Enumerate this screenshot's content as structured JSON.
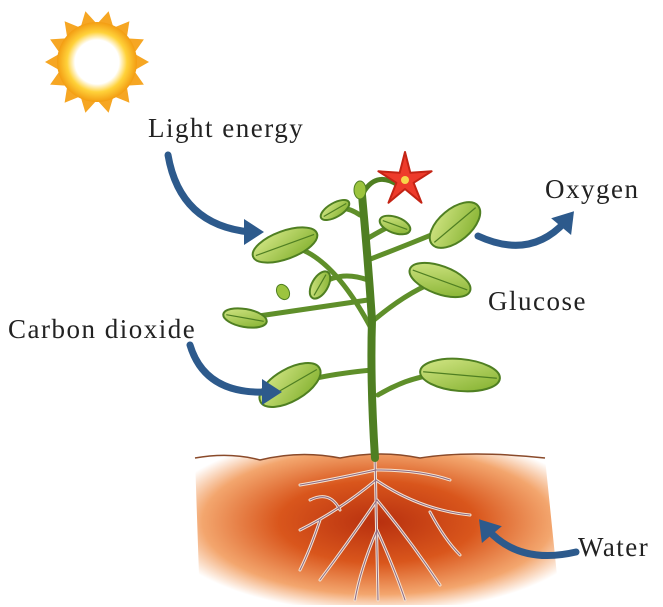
{
  "labels": [
    "Light energy",
    "Oxygen",
    "Glucose",
    "Carbon dioxide",
    "Water"
  ]
}
